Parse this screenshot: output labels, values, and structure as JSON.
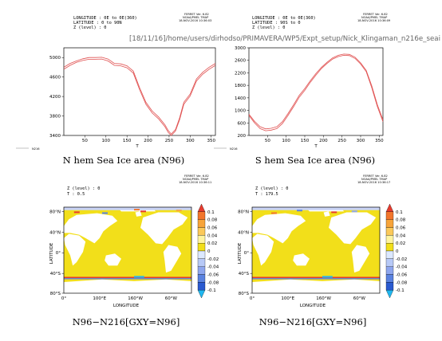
{
  "header_path": "[18/11/16]/home/users/dirhodso/PRIMAVERA/WP5/Expt_setup/Nick_Klingaman_n216e_seai",
  "ferret_stamp": {
    "version": "FERRET Ver. 6.82",
    "nodata": "NOAA/PMEL TMAP",
    "dates": [
      "18-NOV-2016 10:36:03",
      "18-NOV-2016 10:36:09",
      "18-NOV-2016 10:36:11",
      "18-NOV-2016 10:36:17"
    ]
  },
  "colors": {
    "n96_line": "#e05050",
    "n216_line": "#b0b0b0",
    "sea_ice_yellow": "#f2df1a",
    "land": "#ffffff"
  },
  "panels": [
    {
      "meta": [
        "LONGITUDE : 0E to 0E(360)",
        "LATITUDE : 0 to 90N",
        "Z (level) : 0"
      ],
      "title": "N hem Sea Ice area (N96)",
      "legend_label": "N216",
      "xlabel": "T"
    },
    {
      "meta": [
        "LONGITUDE : 0E to 0E(360)",
        "LATITUDE : 90S to 0",
        "Z (level) : 0"
      ],
      "title": "S hem Sea Ice area (N96)",
      "legend_label": "N216",
      "xlabel": "T"
    },
    {
      "meta": [
        "Z (level) : 0",
        "T : 0.5"
      ],
      "title": "N96−N216[GXY=N96]",
      "xlabel": "LONGITUDE",
      "ylabel": "LATITUDE"
    },
    {
      "meta": [
        "Z (level) : 0",
        "T : 179.5"
      ],
      "title": "N96−N216[GXY=N96]",
      "xlabel": "LONGITUDE",
      "ylabel": "LATITUDE"
    }
  ],
  "chart_data": [
    {
      "type": "line",
      "title": "N hem Sea Ice area (N96)",
      "xlabel": "T",
      "ylabel": "",
      "xlim": [
        0,
        360
      ],
      "ylim": [
        3400,
        5200
      ],
      "xticks": [
        50,
        100,
        150,
        200,
        250,
        300,
        350
      ],
      "yticks": [
        3400,
        3800,
        4200,
        4600,
        5000
      ],
      "x": [
        0,
        15,
        30,
        45,
        60,
        75,
        90,
        105,
        120,
        135,
        150,
        165,
        180,
        195,
        210,
        225,
        240,
        248,
        255,
        265,
        275,
        285,
        300,
        315,
        330,
        345,
        360
      ],
      "series": [
        {
          "name": "",
          "values": [
            4800,
            4880,
            4930,
            4975,
            5000,
            5000,
            5005,
            4970,
            4880,
            4870,
            4830,
            4720,
            4380,
            4080,
            3900,
            3780,
            3620,
            3500,
            3430,
            3520,
            3760,
            4080,
            4250,
            4560,
            4700,
            4800,
            4880
          ]
        },
        {
          "name": "N216",
          "values": [
            4760,
            4840,
            4900,
            4940,
            4965,
            4965,
            4970,
            4930,
            4840,
            4830,
            4790,
            4680,
            4340,
            4040,
            3860,
            3740,
            3580,
            3460,
            3400,
            3490,
            3720,
            4040,
            4210,
            4520,
            4660,
            4760,
            4840
          ]
        }
      ]
    },
    {
      "type": "line",
      "title": "S hem Sea Ice area (N96)",
      "xlabel": "T",
      "ylabel": "",
      "xlim": [
        0,
        360
      ],
      "ylim": [
        200,
        3000
      ],
      "xticks": [
        50,
        100,
        150,
        200,
        250,
        300,
        350
      ],
      "yticks": [
        200,
        600,
        1000,
        1400,
        1800,
        2200,
        2600,
        3000
      ],
      "x": [
        0,
        15,
        30,
        45,
        60,
        75,
        90,
        105,
        120,
        135,
        150,
        165,
        180,
        195,
        210,
        225,
        240,
        255,
        270,
        285,
        300,
        315,
        330,
        345,
        360
      ],
      "series": [
        {
          "name": "",
          "values": [
            880,
            650,
            480,
            410,
            430,
            480,
            640,
            900,
            1180,
            1480,
            1700,
            1950,
            2180,
            2380,
            2540,
            2680,
            2760,
            2800,
            2790,
            2700,
            2520,
            2280,
            1780,
            1180,
            700
          ]
        },
        {
          "name": "N216",
          "values": [
            840,
            600,
            420,
            350,
            370,
            420,
            580,
            840,
            1120,
            1420,
            1640,
            1900,
            2130,
            2340,
            2500,
            2640,
            2720,
            2760,
            2750,
            2660,
            2480,
            2240,
            1720,
            1120,
            640
          ]
        }
      ]
    },
    {
      "type": "heatmap",
      "title": "N96−N216[GXY=N96]",
      "xlabel": "LONGITUDE",
      "ylabel": "LATITUDE",
      "xticks": [
        "0°",
        "100°E",
        "160°W",
        "60°W"
      ],
      "yticks": [
        "80°N",
        "40°N",
        "0°",
        "40°S",
        "80°S"
      ],
      "colorbar_levels": [
        0.1,
        0.08,
        0.06,
        0.04,
        0.02,
        0,
        -0.02,
        -0.04,
        -0.06,
        -0.08,
        -0.1
      ],
      "colorbar_labels": [
        "0.1",
        "0.08",
        "0.06",
        "0.04",
        "0.02",
        "0",
        "-0.02",
        "-0.04",
        "-0.06",
        "-0.08",
        "-0.1"
      ],
      "colorbar_colors": [
        "#e63b2e",
        "#f2752c",
        "#f7a43a",
        "#fbc95a",
        "#fff4a0",
        "#f2df1a",
        "#dce8ff",
        "#b7c9f7",
        "#8ea6ee",
        "#5a82e0",
        "#2a5ad0",
        "#20b7f0"
      ],
      "dominant_value": "0"
    },
    {
      "type": "heatmap",
      "title": "N96−N216[GXY=N96]",
      "xlabel": "LONGITUDE",
      "ylabel": "LATITUDE",
      "xticks": [
        "0°",
        "100°E",
        "160°W",
        "60°W"
      ],
      "yticks": [
        "80°N",
        "40°N",
        "0°",
        "40°S",
        "80°S"
      ],
      "colorbar_levels": [
        0.1,
        0.08,
        0.06,
        0.04,
        0.02,
        0,
        -0.02,
        -0.04,
        -0.06,
        -0.08,
        -0.1
      ],
      "colorbar_labels": [
        "0.1",
        "0.08",
        "0.06",
        "0.04",
        "0.02",
        "0",
        "-0.02",
        "-0.04",
        "-0.06",
        "-0.08",
        "-0.1"
      ],
      "colorbar_colors": [
        "#e63b2e",
        "#f2752c",
        "#f7a43a",
        "#fbc95a",
        "#fff4a0",
        "#f2df1a",
        "#dce8ff",
        "#b7c9f7",
        "#8ea6ee",
        "#5a82e0",
        "#2a5ad0",
        "#20b7f0"
      ],
      "dominant_value": "0"
    }
  ]
}
